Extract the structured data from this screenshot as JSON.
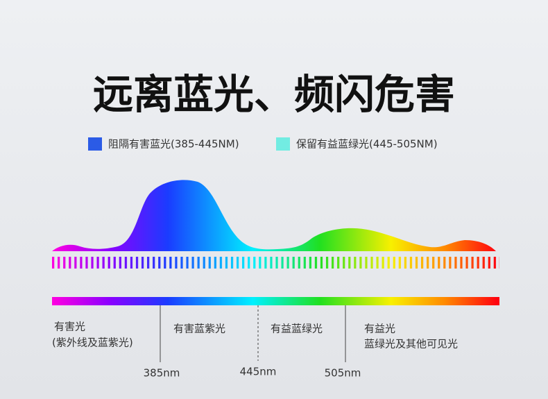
{
  "title": "远离蓝光、频闪危害",
  "legend": [
    {
      "label": "阻隔有害蓝光(385-445NM)"
    },
    {
      "label": "保留有益蓝绿光(445-505NM)"
    }
  ],
  "regions": [
    {
      "lines": [
        "有害光",
        "(紫外线及蓝紫光)"
      ]
    },
    {
      "lines": [
        "有害蓝紫光"
      ]
    },
    {
      "lines": [
        "有益蓝绿光"
      ]
    },
    {
      "lines": [
        "有益光",
        "蓝绿光及其他可见光"
      ]
    }
  ],
  "boundaries": [
    "385nm",
    "445nm",
    "505nm"
  ]
}
